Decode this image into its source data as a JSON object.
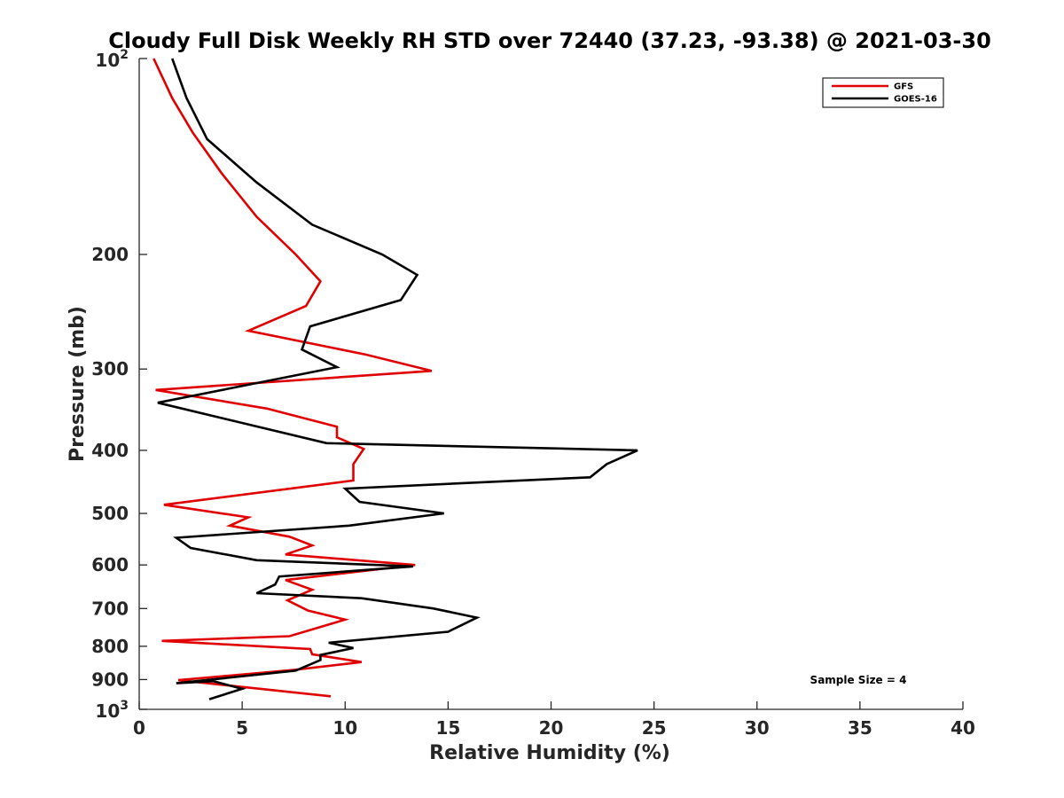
{
  "chart_data": {
    "type": "line",
    "title": "Cloudy Full Disk Weekly RH STD over 72440 (37.23, -93.38) @ 2021-03-30",
    "xlabel": "Relative Humidity (%)",
    "ylabel": "Pressure (mb)",
    "xlim": [
      0,
      40
    ],
    "ylim": [
      100,
      1000
    ],
    "y_scale": "log",
    "y_reversed": true,
    "x_ticks": [
      "0",
      "5",
      "10",
      "15",
      "20",
      "25",
      "30",
      "35",
      "40"
    ],
    "y_ticks": [
      {
        "value": 100,
        "base": "10",
        "exp": "2"
      },
      {
        "value": 200,
        "label": "200"
      },
      {
        "value": 300,
        "label": "300"
      },
      {
        "value": 400,
        "label": "400"
      },
      {
        "value": 500,
        "label": "500"
      },
      {
        "value": 600,
        "label": "600"
      },
      {
        "value": 700,
        "label": "700"
      },
      {
        "value": 800,
        "label": "800"
      },
      {
        "value": 900,
        "label": "900"
      },
      {
        "value": 1000,
        "base": "10",
        "exp": "3"
      }
    ],
    "grid": false,
    "legend_position": "top-right",
    "annotation": "Sample Size = 4",
    "series": [
      {
        "name": "GFS",
        "color": "#e00000",
        "points": [
          [
            0.7,
            100
          ],
          [
            1.6,
            115
          ],
          [
            2.6,
            130
          ],
          [
            4.0,
            150
          ],
          [
            5.7,
            175
          ],
          [
            7.6,
            200
          ],
          [
            8.8,
            220
          ],
          [
            8.1,
            240
          ],
          [
            5.3,
            262
          ],
          [
            11.0,
            285
          ],
          [
            14.2,
            302
          ],
          [
            0.8,
            323
          ],
          [
            6.2,
            345
          ],
          [
            9.6,
            368
          ],
          [
            9.6,
            382
          ],
          [
            10.9,
            398
          ],
          [
            10.4,
            420
          ],
          [
            10.4,
            445
          ],
          [
            1.2,
            485
          ],
          [
            5.3,
            507
          ],
          [
            4.4,
            522
          ],
          [
            7.3,
            543
          ],
          [
            8.4,
            560
          ],
          [
            7.1,
            578
          ],
          [
            13.4,
            600
          ],
          [
            7.1,
            633
          ],
          [
            8.4,
            655
          ],
          [
            7.2,
            680
          ],
          [
            8.2,
            705
          ],
          [
            10.0,
            728
          ],
          [
            7.3,
            772
          ],
          [
            1.1,
            785
          ],
          [
            8.3,
            808
          ],
          [
            8.4,
            823
          ],
          [
            10.8,
            846
          ],
          [
            7.5,
            870
          ],
          [
            1.9,
            902
          ],
          [
            9.3,
            955
          ]
        ]
      },
      {
        "name": "GOES-16",
        "color": "#000000",
        "points": [
          [
            1.6,
            100
          ],
          [
            2.3,
            115
          ],
          [
            3.3,
            133
          ],
          [
            5.7,
            155
          ],
          [
            8.4,
            180
          ],
          [
            11.8,
            200
          ],
          [
            13.5,
            215
          ],
          [
            12.7,
            235
          ],
          [
            8.3,
            258
          ],
          [
            7.9,
            280
          ],
          [
            9.6,
            298
          ],
          [
            0.9,
            338
          ],
          [
            9.1,
            390
          ],
          [
            24.2,
            400
          ],
          [
            22.7,
            420
          ],
          [
            21.9,
            440
          ],
          [
            10.0,
            458
          ],
          [
            10.7,
            480
          ],
          [
            14.8,
            500
          ],
          [
            10.2,
            522
          ],
          [
            1.8,
            545
          ],
          [
            2.5,
            565
          ],
          [
            5.7,
            590
          ],
          [
            13.3,
            603
          ],
          [
            6.8,
            625
          ],
          [
            6.6,
            643
          ],
          [
            5.7,
            663
          ],
          [
            10.8,
            675
          ],
          [
            14.3,
            700
          ],
          [
            16.4,
            723
          ],
          [
            15.0,
            760
          ],
          [
            9.2,
            790
          ],
          [
            10.4,
            805
          ],
          [
            8.8,
            825
          ],
          [
            8.8,
            840
          ],
          [
            7.6,
            872
          ],
          [
            1.8,
            912
          ],
          [
            3.6,
            905
          ],
          [
            5.0,
            930
          ],
          [
            3.4,
            965
          ]
        ]
      }
    ]
  }
}
